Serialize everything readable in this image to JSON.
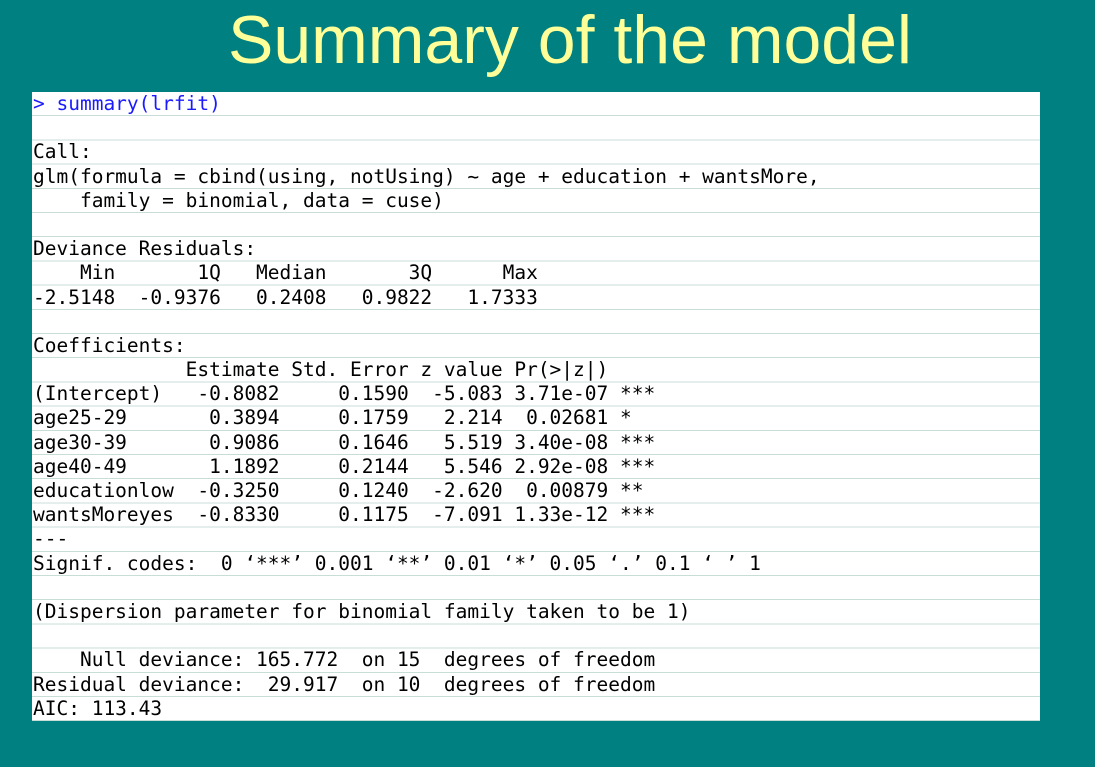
{
  "slide": {
    "title": "Summary of the model"
  },
  "console": {
    "lines": [
      "> summary(lrfit)",
      "",
      "Call:",
      "glm(formula = cbind(using, notUsing) ~ age + education + wantsMore,",
      "    family = binomial, data = cuse)",
      "",
      "Deviance Residuals:",
      "    Min       1Q   Median       3Q      Max",
      "-2.5148  -0.9376   0.2408   0.9822   1.7333",
      "",
      "Coefficients:",
      "             Estimate Std. Error z value Pr(>|z|)",
      "(Intercept)   -0.8082     0.1590  -5.083 3.71e-07 ***",
      "age25-29       0.3894     0.1759   2.214  0.02681 *",
      "age30-39       0.9086     0.1646   5.519 3.40e-08 ***",
      "age40-49       1.1892     0.2144   5.546 2.92e-08 ***",
      "educationlow  -0.3250     0.1240  -2.620  0.00879 **",
      "wantsMoreyes  -0.8330     0.1175  -7.091 1.33e-12 ***",
      "---",
      "Signif. codes:  0 ‘***’ 0.001 ‘**’ 0.01 ‘*’ 0.05 ‘.’ 0.1 ‘ ’ 1",
      "",
      "(Dispersion parameter for binomial family taken to be 1)",
      "",
      "    Null deviance: 165.772  on 15  degrees of freedom",
      "Residual deviance:  29.917  on 10  degrees of freedom",
      "AIC: 113.43"
    ]
  },
  "colors": {
    "background": "#008080",
    "title": "#ffff99",
    "command": "#1a1aff",
    "output": "#000000"
  }
}
